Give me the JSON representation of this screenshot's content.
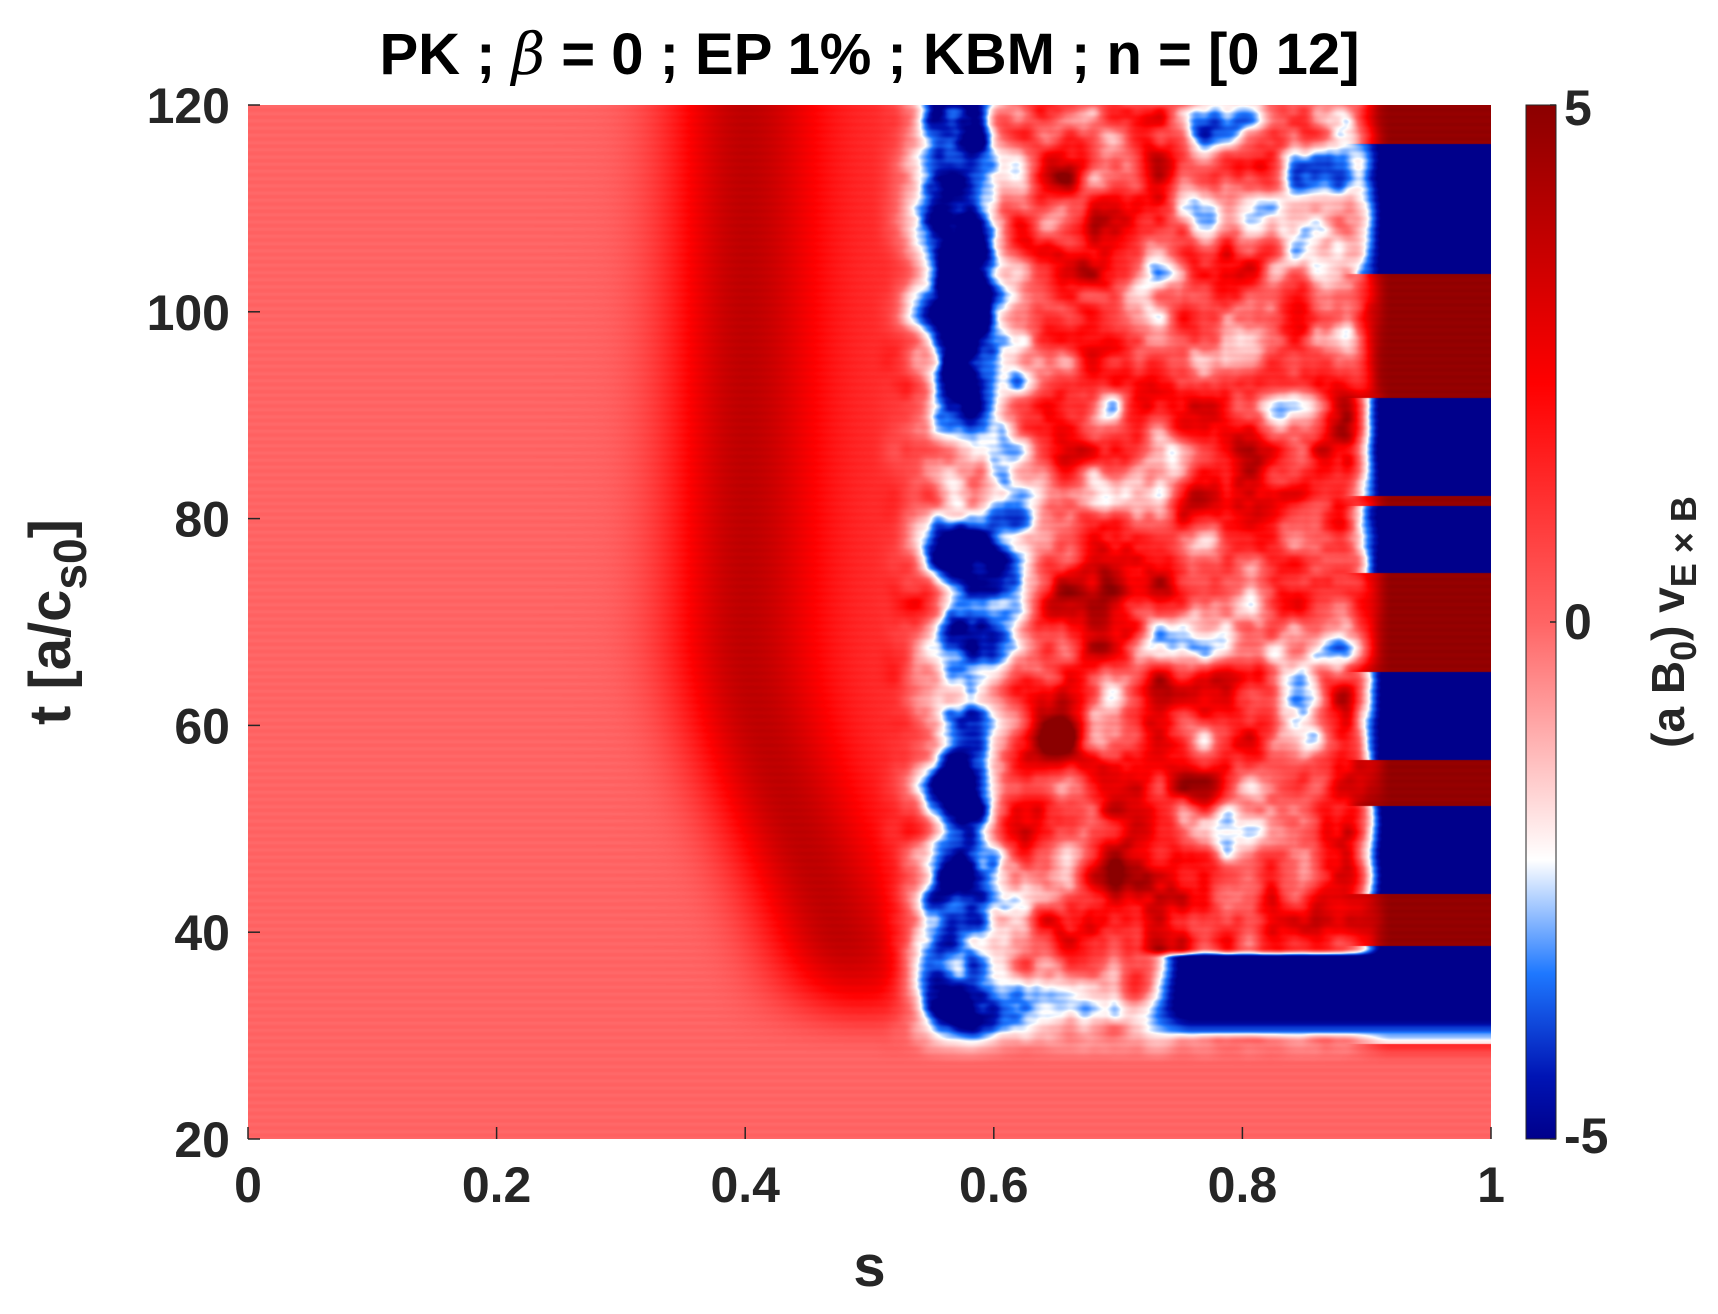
{
  "chart_data": {
    "type": "heatmap",
    "title": {
      "prefix": "PK ; ",
      "symbol": "β",
      "suffix": " = 0 ; EP 1% ; KBM ; n = [0 12]"
    },
    "xlabel": "s",
    "ylabel": {
      "main": "t [a/c",
      "sub": "s0",
      "close": "]"
    },
    "xlim": [
      0,
      1
    ],
    "ylim": [
      20,
      120
    ],
    "x_ticks": [
      "0",
      "0.2",
      "0.4",
      "0.6",
      "0.8",
      "1"
    ],
    "x_tick_values": [
      0,
      0.2,
      0.4,
      0.6,
      0.8,
      1
    ],
    "y_ticks": [
      "20",
      "40",
      "60",
      "80",
      "100",
      "120"
    ],
    "y_tick_values": [
      20,
      40,
      60,
      80,
      100,
      120
    ],
    "colorbar": {
      "label_main": "(a B",
      "label_sub0": "0",
      "label_mid": ") v",
      "label_sub1": "E × B",
      "range": [
        -5,
        5
      ],
      "tick_labels": [
        "5",
        "0",
        "-5"
      ],
      "tick_values": [
        5,
        0,
        -5
      ],
      "colormap": [
        {
          "v": -5,
          "color": "#00008b"
        },
        {
          "v": -4.4,
          "color": "#0014b4"
        },
        {
          "v": -3.4,
          "color": "#1e78ff"
        },
        {
          "v": -2.3,
          "color": "#ffffff"
        },
        {
          "v": 0,
          "color": "#ff6464"
        },
        {
          "v": 2.3,
          "color": "#ff0000"
        },
        {
          "v": 5,
          "color": "#8b0000"
        }
      ]
    },
    "field_summary": {
      "quiescent_value": 0,
      "quiescent_region": "t below about 28 everywhere; s below about 0.4 for all t",
      "turbulent_region": "s from about 0.5 to 1 for t above about 28",
      "value_range": [
        -5,
        5
      ]
    }
  }
}
